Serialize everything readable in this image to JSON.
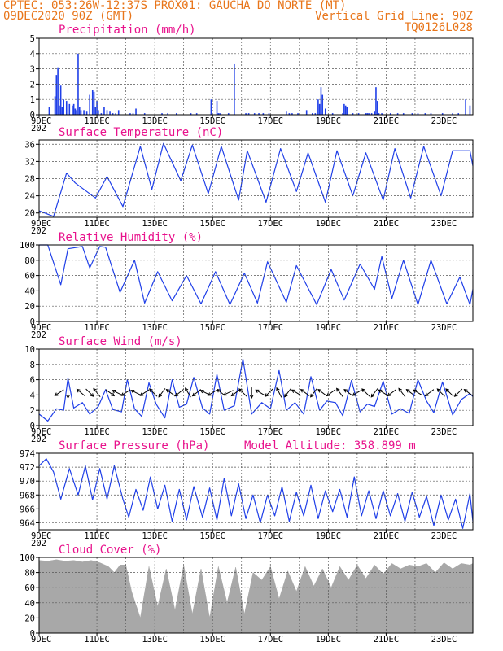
{
  "header": {
    "line1_left": "CPTEC:  053:26W-12:37S  PROX01: GAUCHA DO NORTE (MT)",
    "line2_left": "09DEC2020 90Z (GMT)",
    "line2_right": "Vertical Grid Line: 90Z",
    "line3_right": "TQ0126L028"
  },
  "x_axis": {
    "labels": [
      "9DEC",
      "11DEC",
      "13DEC",
      "15DEC",
      "17DEC",
      "19DEC",
      "21DEC",
      "23DEC"
    ],
    "year_stub": "202"
  },
  "colors": {
    "header": "#e8751a",
    "panel_title": "#e8128c",
    "series": "#1f3fe8",
    "cloud": "#a8a8a8",
    "wind_arrow": "#000000"
  },
  "chart_data": [
    {
      "id": "precipitation",
      "type": "bar",
      "title": "Precipitation (mm/h)",
      "ylim": [
        0,
        5
      ],
      "yticks": [
        0,
        1,
        2,
        3,
        4,
        5
      ],
      "x_unit": "days since 9DEC 00Z",
      "x": [
        0.35,
        0.55,
        0.6,
        0.65,
        0.7,
        0.75,
        0.8,
        0.85,
        0.95,
        1.05,
        1.15,
        1.2,
        1.25,
        1.3,
        1.35,
        1.4,
        1.45,
        1.55,
        1.65,
        1.75,
        1.85,
        1.9,
        1.95,
        2.0,
        2.05,
        2.15,
        2.25,
        2.35,
        2.45,
        2.55,
        2.65,
        2.75,
        3.15,
        3.25,
        3.35,
        3.65,
        4.25,
        4.45,
        4.75,
        5.25,
        5.45,
        5.95,
        6.15,
        6.2,
        6.25,
        6.55,
        6.75,
        7.15,
        7.25,
        7.45,
        7.6,
        7.75,
        7.95,
        8.55,
        8.65,
        8.75,
        8.95,
        9.25,
        9.45,
        9.55,
        9.65,
        9.7,
        9.75,
        9.8,
        9.9,
        10.15,
        10.5,
        10.55,
        10.6,
        10.65,
        10.85,
        11.05,
        11.3,
        11.35,
        11.4,
        11.5,
        11.6,
        11.65,
        11.7,
        11.75,
        11.85,
        12.15,
        12.4,
        12.6,
        12.9,
        13.1,
        13.35,
        13.55,
        13.95,
        14.3,
        14.5,
        14.75,
        14.9
      ],
      "values": [
        0.5,
        1.2,
        2.6,
        3.1,
        0.6,
        1.9,
        0.5,
        1.0,
        0.9,
        0.7,
        0.6,
        0.7,
        0.4,
        0.3,
        4.0,
        0.5,
        0.3,
        0.3,
        0.2,
        1.3,
        1.6,
        1.5,
        0.5,
        0.9,
        0.3,
        0.1,
        0.5,
        0.3,
        0.2,
        0.1,
        0.1,
        0.3,
        0.1,
        0.1,
        0.4,
        0.1,
        0.1,
        0.1,
        0.1,
        0.1,
        0.1,
        1.0,
        0.9,
        0.1,
        0.1,
        0.1,
        3.3,
        0.1,
        0.1,
        0.1,
        0.1,
        0.1,
        0.1,
        0.2,
        0.1,
        0.1,
        0.1,
        0.3,
        0.1,
        0.1,
        1.0,
        0.7,
        1.8,
        1.3,
        0.4,
        0.1,
        0.1,
        0.7,
        0.6,
        0.5,
        0.1,
        0.1,
        0.1,
        0.1,
        0.1,
        0.1,
        0.2,
        1.8,
        0.9,
        0.1,
        0.1,
        0.1,
        0.1,
        0.1,
        0.1,
        0.1,
        0.1,
        0.1,
        0.1,
        0.1,
        0.1,
        1.0,
        0.6
      ]
    },
    {
      "id": "surface-temperature",
      "type": "line",
      "title": "Surface Temperature (nC)",
      "ylim": [
        19,
        37
      ],
      "yticks": [
        20,
        24,
        28,
        32,
        36
      ],
      "x_unit": "days since 9DEC 00Z",
      "x": [
        0.0,
        0.5,
        0.95,
        1.25,
        1.95,
        2.35,
        2.9,
        3.5,
        3.9,
        4.3,
        4.9,
        5.3,
        5.85,
        6.3,
        6.9,
        7.2,
        7.85,
        8.35,
        8.9,
        9.3,
        9.9,
        10.3,
        10.85,
        11.3,
        11.9,
        12.3,
        12.85,
        13.3,
        13.9,
        14.3,
        14.9,
        15.0
      ],
      "values": [
        20.5,
        19.2,
        29.3,
        27.0,
        23.5,
        28.5,
        21.5,
        35.5,
        25.5,
        36.2,
        27.5,
        35.8,
        24.5,
        35.5,
        23.0,
        34.5,
        22.5,
        35.0,
        25.0,
        34.0,
        22.5,
        34.5,
        24.0,
        34.0,
        23.0,
        35.0,
        23.5,
        35.5,
        24.0,
        34.5,
        34.5,
        31.0
      ]
    },
    {
      "id": "relative-humidity",
      "type": "line",
      "title": "Relative Humidity (%)",
      "ylim": [
        0,
        100
      ],
      "yticks": [
        0,
        20,
        40,
        60,
        80,
        100
      ],
      "x_unit": "days since 9DEC 00Z",
      "x": [
        0.0,
        0.3,
        0.75,
        1.0,
        1.5,
        1.75,
        2.1,
        2.3,
        2.8,
        3.3,
        3.65,
        4.1,
        4.6,
        5.1,
        5.6,
        6.1,
        6.6,
        7.1,
        7.55,
        7.9,
        8.55,
        8.9,
        9.6,
        10.1,
        10.55,
        11.1,
        11.6,
        11.85,
        12.2,
        12.6,
        13.1,
        13.55,
        14.1,
        14.55,
        14.9,
        15.0
      ],
      "values": [
        100,
        100,
        48,
        95,
        98,
        70,
        98,
        97,
        38,
        80,
        24,
        65,
        27,
        60,
        23,
        65,
        22,
        63,
        24,
        78,
        25,
        73,
        22,
        68,
        28,
        75,
        42,
        85,
        30,
        80,
        22,
        80,
        23,
        58,
        22,
        42
      ]
    },
    {
      "id": "surface-wind",
      "type": "line",
      "title": "Surface Wind (m/s)",
      "ylim": [
        0,
        10
      ],
      "yticks": [
        0,
        2,
        4,
        6,
        8,
        10
      ],
      "x_unit": "days since 9DEC 00Z",
      "x": [
        0.0,
        0.3,
        0.6,
        0.85,
        1.0,
        1.2,
        1.5,
        1.75,
        2.05,
        2.3,
        2.55,
        2.85,
        3.05,
        3.3,
        3.55,
        3.8,
        4.05,
        4.35,
        4.6,
        4.85,
        5.1,
        5.35,
        5.65,
        5.9,
        6.15,
        6.4,
        6.75,
        7.05,
        7.35,
        7.7,
        8.0,
        8.3,
        8.55,
        8.85,
        9.15,
        9.4,
        9.7,
        9.95,
        10.25,
        10.5,
        10.8,
        11.1,
        11.35,
        11.6,
        11.9,
        12.2,
        12.5,
        12.8,
        13.1,
        13.4,
        13.65,
        13.95,
        14.3,
        14.6,
        14.9,
        15.0
      ],
      "values": [
        1.5,
        0.6,
        2.2,
        2.0,
        6.2,
        2.3,
        3.0,
        1.5,
        2.5,
        4.7,
        2.1,
        1.8,
        6.0,
        2.2,
        1.2,
        5.6,
        2.8,
        1.0,
        6.0,
        2.4,
        2.8,
        6.3,
        2.3,
        1.5,
        6.7,
        2.0,
        2.6,
        8.7,
        1.5,
        3.0,
        2.2,
        7.2,
        2.0,
        3.0,
        1.5,
        6.4,
        2.0,
        3.2,
        3.0,
        1.3,
        5.9,
        1.8,
        2.8,
        2.5,
        5.8,
        1.5,
        2.2,
        1.6,
        6.0,
        3.2,
        1.7,
        5.7,
        1.4,
        3.4,
        4.2,
        3.8
      ]
    },
    {
      "id": "surface-pressure",
      "type": "line",
      "title": "Surface Pressure (hPa)",
      "annotation": "Model Altitude: 358.899 m",
      "ylim": [
        963,
        974
      ],
      "yticks": [
        964,
        966,
        968,
        970,
        972,
        974
      ],
      "x_unit": "days since 9DEC 00Z",
      "x": [
        0.0,
        0.25,
        0.5,
        0.75,
        1.05,
        1.35,
        1.6,
        1.85,
        2.1,
        2.35,
        2.6,
        2.9,
        3.1,
        3.35,
        3.6,
        3.85,
        4.1,
        4.35,
        4.6,
        4.85,
        5.1,
        5.35,
        5.65,
        5.9,
        6.15,
        6.4,
        6.65,
        6.9,
        7.15,
        7.4,
        7.65,
        7.9,
        8.15,
        8.4,
        8.65,
        8.9,
        9.15,
        9.4,
        9.65,
        9.9,
        10.15,
        10.4,
        10.65,
        10.9,
        11.15,
        11.4,
        11.65,
        11.9,
        12.15,
        12.4,
        12.65,
        12.9,
        13.15,
        13.4,
        13.65,
        13.9,
        14.15,
        14.4,
        14.65,
        14.9,
        15.0
      ],
      "values": [
        972.2,
        973.2,
        971.3,
        967.4,
        971.8,
        968.0,
        972.2,
        967.3,
        971.8,
        967.4,
        972.2,
        967.4,
        964.8,
        968.8,
        965.8,
        970.6,
        966.0,
        969.4,
        964.2,
        968.8,
        964.4,
        969.2,
        964.8,
        969.0,
        964.4,
        970.4,
        965.0,
        969.6,
        964.6,
        968.0,
        964.0,
        968.0,
        965.0,
        969.2,
        964.2,
        968.4,
        965.0,
        969.4,
        964.6,
        968.6,
        965.6,
        968.8,
        964.8,
        970.6,
        965.0,
        968.6,
        964.6,
        968.6,
        965.0,
        968.2,
        964.2,
        968.4,
        964.8,
        967.8,
        963.6,
        968.0,
        964.4,
        967.4,
        963.2,
        968.2,
        964.2
      ]
    },
    {
      "id": "cloud-cover",
      "type": "area",
      "title": "Cloud Cover (%)",
      "ylim": [
        0,
        100
      ],
      "yticks": [
        0,
        20,
        40,
        60,
        80,
        100
      ],
      "x_unit": "days since 9DEC 00Z",
      "x": [
        0.0,
        0.3,
        0.6,
        0.9,
        1.2,
        1.5,
        1.8,
        2.1,
        2.4,
        2.6,
        2.8,
        3.0,
        3.2,
        3.5,
        3.8,
        4.1,
        4.4,
        4.7,
        5.0,
        5.3,
        5.6,
        5.9,
        6.2,
        6.5,
        6.8,
        7.1,
        7.4,
        7.7,
        8.0,
        8.3,
        8.6,
        8.9,
        9.2,
        9.5,
        9.8,
        10.1,
        10.4,
        10.7,
        11.0,
        11.3,
        11.6,
        11.9,
        12.2,
        12.5,
        12.8,
        13.1,
        13.4,
        13.7,
        14.0,
        14.3,
        14.6,
        14.9,
        15.0
      ],
      "values": [
        96,
        95,
        97,
        95,
        96,
        94,
        96,
        93,
        88,
        80,
        90,
        90,
        55,
        20,
        88,
        35,
        85,
        30,
        90,
        25,
        85,
        20,
        88,
        40,
        87,
        25,
        80,
        70,
        88,
        45,
        82,
        55,
        88,
        62,
        85,
        60,
        88,
        70,
        90,
        72,
        90,
        78,
        92,
        85,
        90,
        88,
        92,
        80,
        93,
        85,
        92,
        90,
        92
      ]
    }
  ],
  "wind_arrows": {
    "x_unit": "days since 9DEC 00Z",
    "x": [
      0.7,
      1.0,
      1.45,
      1.75,
      2.0,
      2.45,
      2.7,
      3.0,
      3.35,
      3.65,
      3.95,
      4.25,
      4.55,
      4.85,
      5.15,
      5.45,
      5.75,
      6.0,
      6.3,
      6.55,
      6.8,
      7.05,
      7.35,
      7.65,
      7.95,
      8.3,
      8.6,
      8.9,
      9.2,
      9.5,
      9.8,
      10.1,
      10.4,
      10.7,
      11.0,
      11.3,
      11.6,
      11.9,
      12.2,
      12.55,
      12.85,
      13.1,
      13.5,
      13.9,
      14.2,
      14.5,
      14.85
    ],
    "u": [
      -0.3,
      0.0,
      -0.6,
      0.3,
      -0.4,
      0.4,
      -0.6,
      -0.6,
      -0.6,
      -0.6,
      -0.4,
      -0.3,
      -0.4,
      -0.5,
      -0.3,
      -0.5,
      -0.6,
      -0.5,
      -0.5,
      -0.6,
      -0.4,
      -0.4,
      0.0,
      -0.5,
      -0.4,
      -0.2,
      -0.3,
      -0.5,
      -0.4,
      -0.3,
      -0.4,
      -0.4,
      -0.3,
      -0.4,
      -0.5,
      -0.4,
      -0.3,
      -0.5,
      -0.4,
      -0.3,
      -0.4,
      -0.5,
      -0.4,
      -0.3,
      -0.4,
      -0.3,
      -0.4
    ],
    "v": [
      -0.2,
      -0.6,
      0.5,
      -0.3,
      0.5,
      -0.3,
      0.3,
      -0.4,
      0.3,
      -0.4,
      0.4,
      -0.4,
      0.3,
      -0.4,
      0.5,
      -0.4,
      0.3,
      -0.3,
      0.4,
      -0.3,
      -0.3,
      0.4,
      -0.6,
      0.3,
      -0.4,
      0.4,
      -0.4,
      0.3,
      0.3,
      -0.4,
      0.3,
      -0.3,
      0.4,
      0.3,
      -0.3,
      0.4,
      -0.4,
      0.3,
      -0.3,
      0.4,
      0.3,
      0.3,
      -0.3,
      0.3,
      0.4,
      -0.3,
      0.3
    ]
  }
}
